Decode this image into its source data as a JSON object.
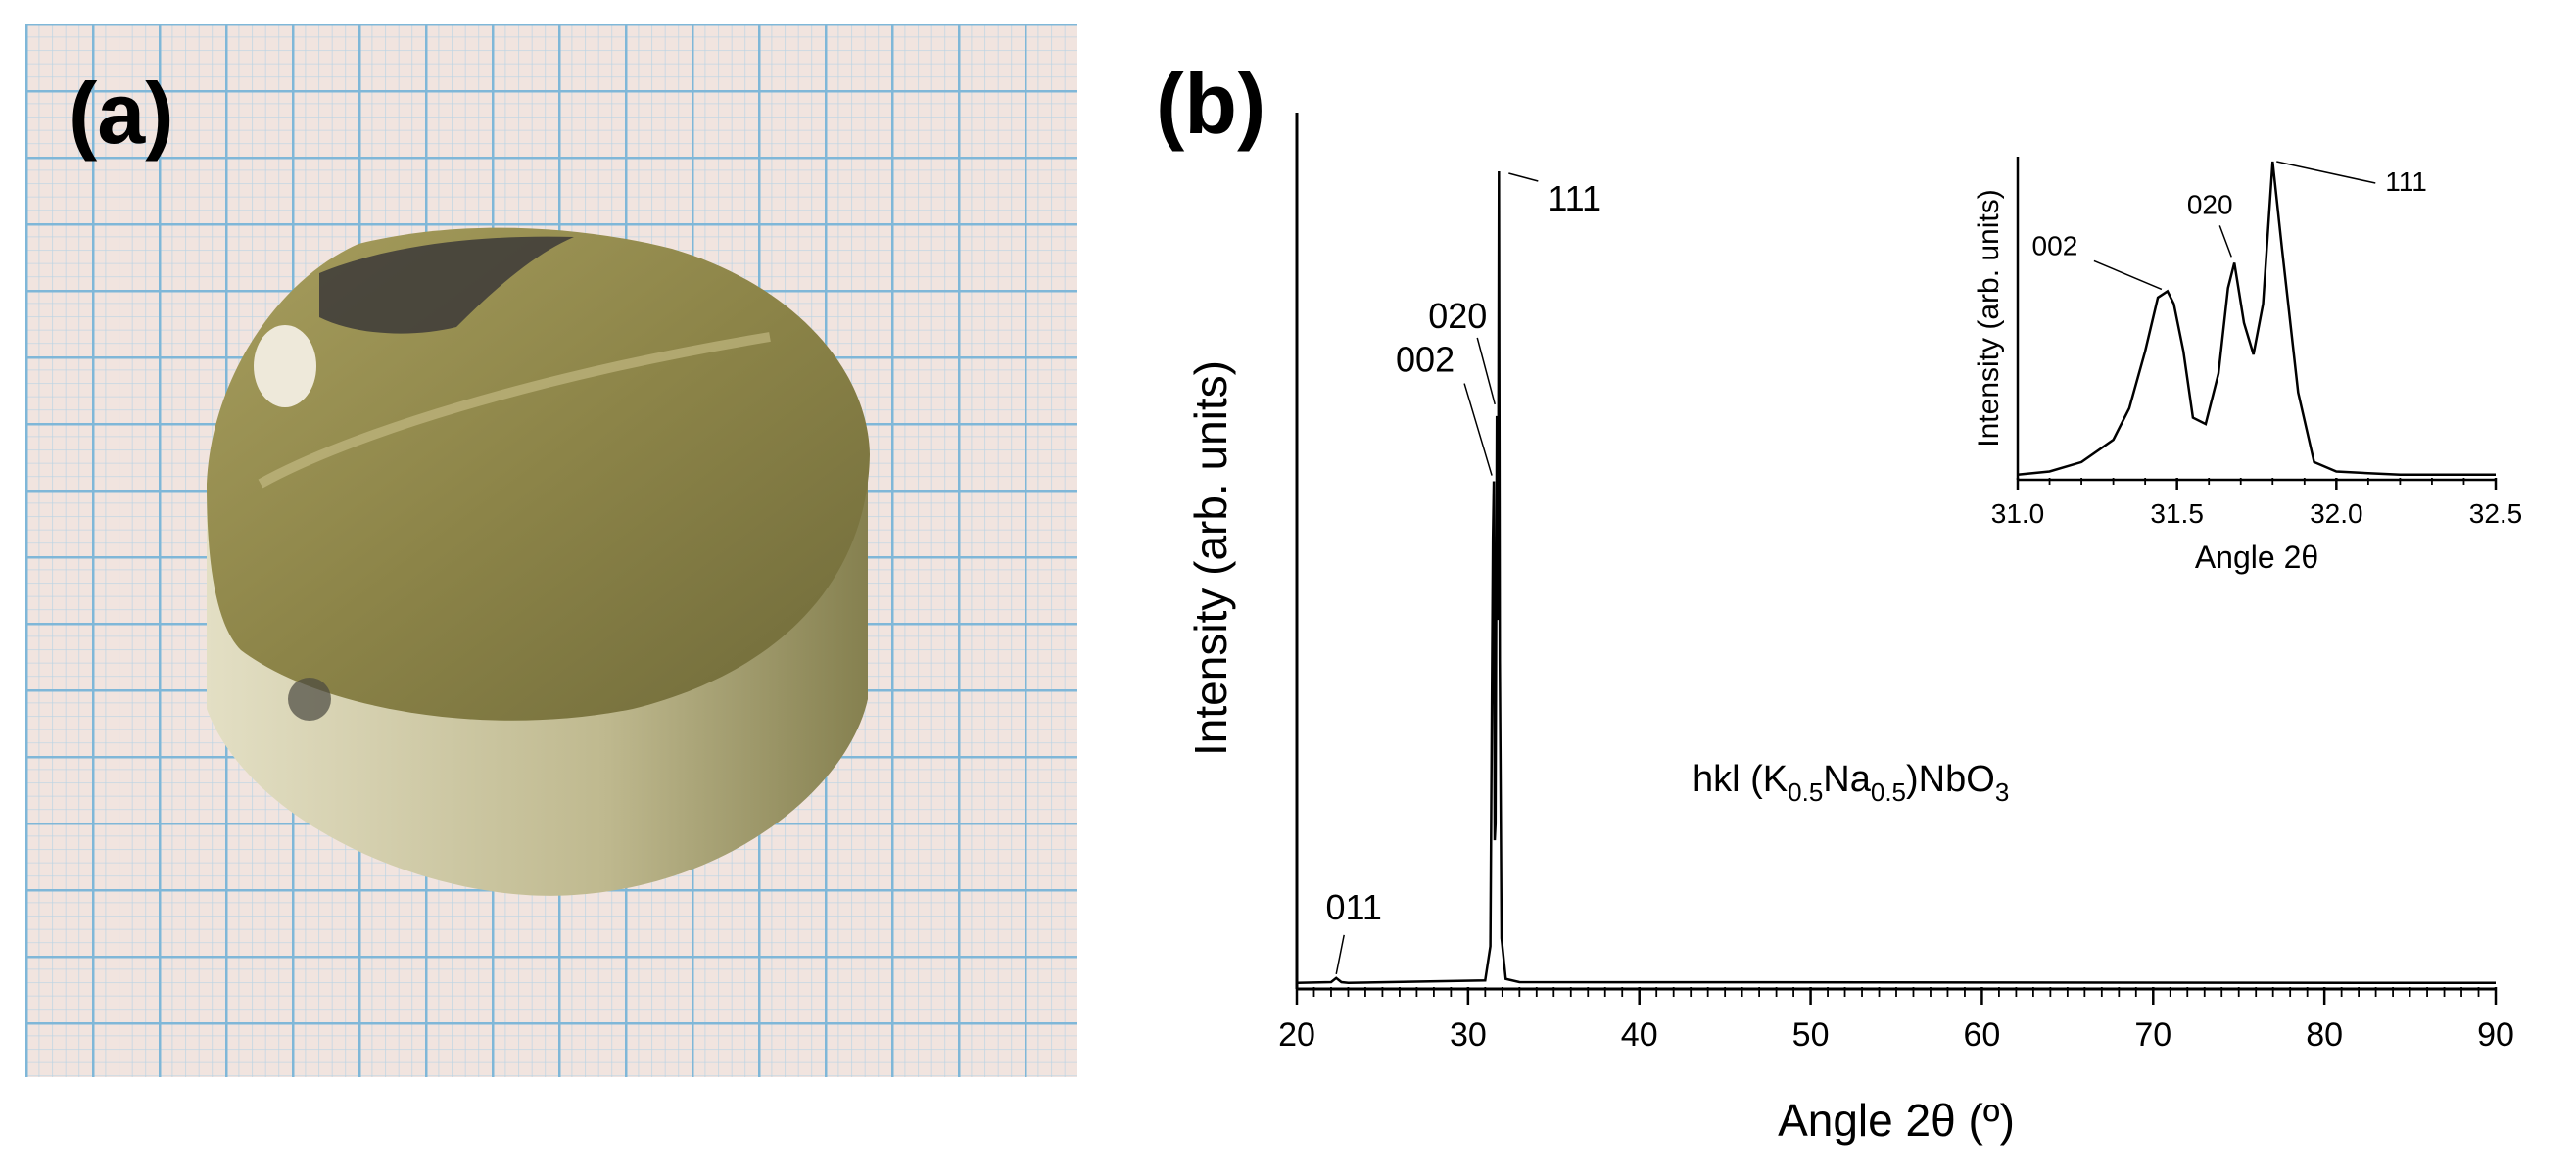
{
  "panels": {
    "a": {
      "label": "(a)"
    },
    "b": {
      "label": "(b)"
    }
  },
  "colors": {
    "line": "#000000",
    "grid_paper": "#f1e4df",
    "grid_line": "#8cc0dc",
    "pellet_top": "#938a4a",
    "pellet_side": "#d8d4b2",
    "pellet_dark": "#3c3a38",
    "crystal": "#eee9da"
  },
  "chart_data": [
    {
      "type": "line",
      "xlabel": "Angle 2θ (º)",
      "ylabel": "Intensity (arb. units)",
      "annotation": "hkl (K0.5Na0.5)NbO3",
      "xlim": [
        20,
        90
      ],
      "ylim": [
        0,
        100
      ],
      "xticks": [
        "20",
        "30",
        "40",
        "50",
        "60",
        "70",
        "80",
        "90"
      ],
      "x": [
        20,
        22.0,
        22.3,
        22.6,
        23.0,
        31.0,
        31.3,
        31.45,
        31.5,
        31.55,
        31.6,
        31.68,
        31.72,
        31.76,
        31.8,
        31.85,
        31.95,
        32.2,
        33,
        90
      ],
      "y": [
        0.5,
        0.6,
        1.1,
        0.6,
        0.5,
        0.8,
        5,
        55,
        62,
        18,
        20,
        70,
        45,
        55,
        100,
        40,
        6,
        1,
        0.6,
        0.5
      ],
      "peak_labels": [
        {
          "text": "111",
          "x": 31.8
        },
        {
          "text": "020",
          "x": 31.68
        },
        {
          "text": "002",
          "x": 31.5
        },
        {
          "text": "011",
          "x": 22.3
        }
      ],
      "grid": false
    },
    {
      "type": "line",
      "inset": true,
      "xlabel": "Angle 2θ",
      "ylabel": "Intensity (arb. units)",
      "xlim": [
        31.0,
        32.5
      ],
      "ylim": [
        0,
        100
      ],
      "xticks": [
        "31.0",
        "31.5",
        "32.0",
        "32.5"
      ],
      "x": [
        31.0,
        31.1,
        31.2,
        31.3,
        31.35,
        31.4,
        31.44,
        31.47,
        31.49,
        31.52,
        31.55,
        31.59,
        31.63,
        31.66,
        31.68,
        31.71,
        31.74,
        31.77,
        31.8,
        31.83,
        31.88,
        31.93,
        32.0,
        32.1,
        32.2,
        32.5
      ],
      "y": [
        1,
        2,
        5,
        12,
        22,
        40,
        57,
        59,
        55,
        40,
        19,
        17,
        33,
        60,
        68,
        49,
        39,
        55,
        100,
        72,
        27,
        5,
        2,
        1.5,
        1,
        1
      ],
      "peak_labels": [
        {
          "text": "002",
          "x": 31.47
        },
        {
          "text": "020",
          "x": 31.68
        },
        {
          "text": "111",
          "x": 31.8
        }
      ],
      "grid": false
    }
  ]
}
